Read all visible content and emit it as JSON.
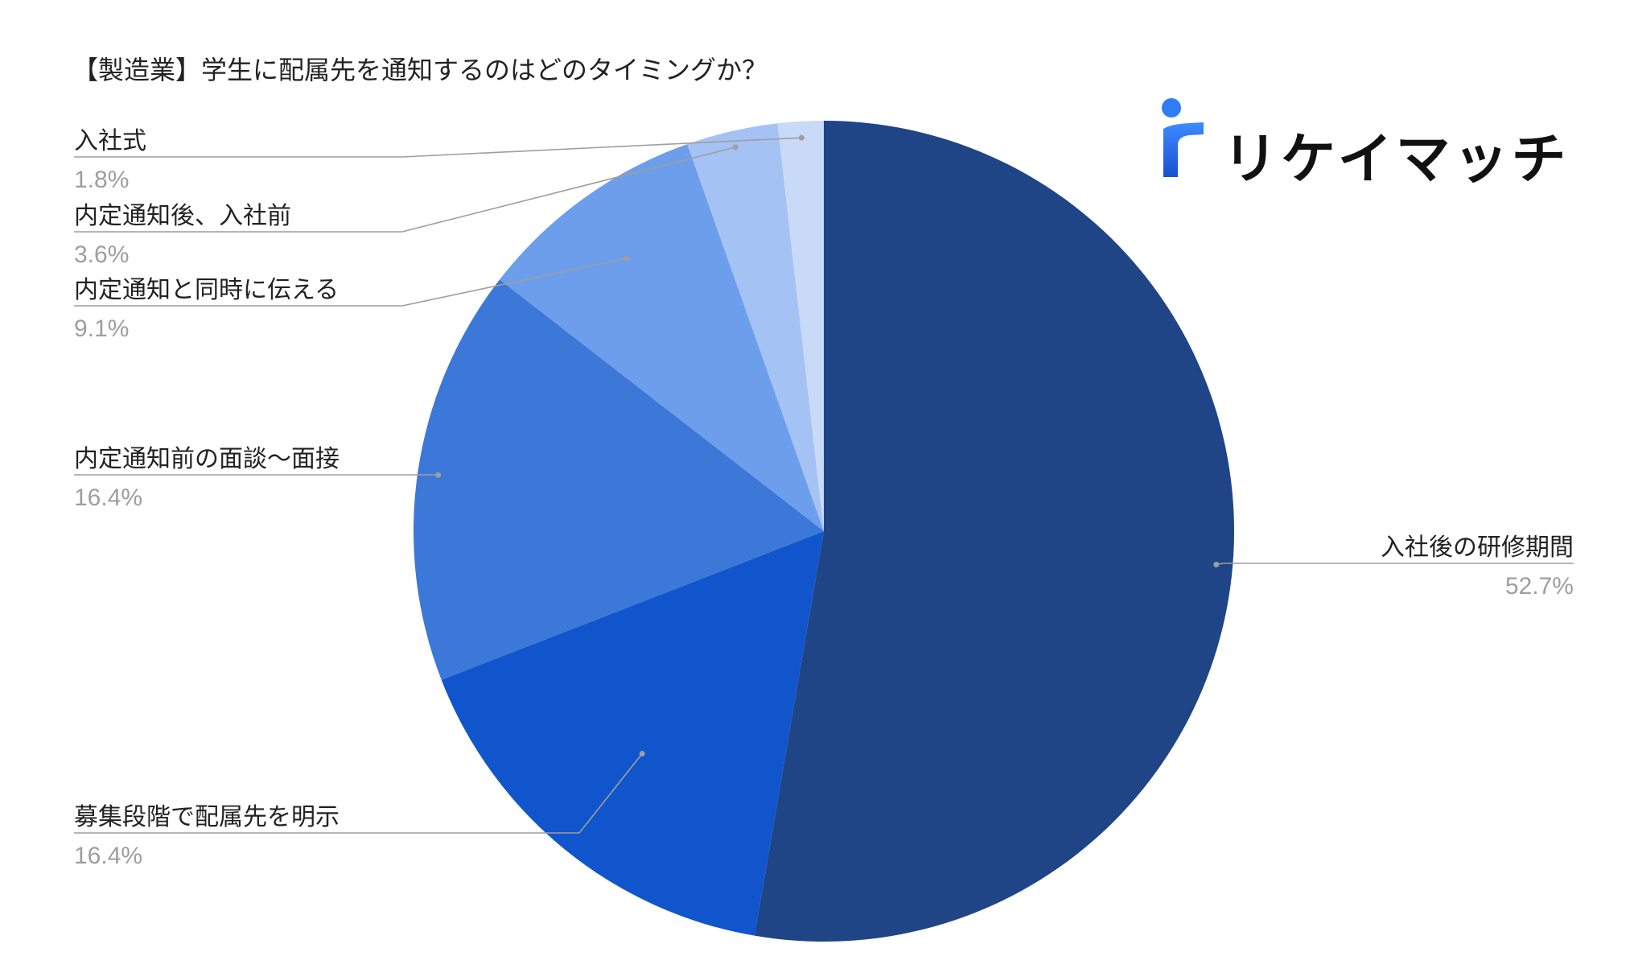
{
  "chart_data": {
    "type": "pie",
    "title": "【製造業】学生に配属先を通知するのはどのタイミングか？",
    "slices": [
      {
        "label": "入社後の研修期間",
        "value": 52.7,
        "value_label": "52.7%",
        "color": "#1f4587"
      },
      {
        "label": "募集段階で配属先を明示",
        "value": 16.4,
        "value_label": "16.4%",
        "color": "#1155cc"
      },
      {
        "label": "内定通知前の面談〜面接",
        "value": 16.4,
        "value_label": "16.4%",
        "color": "#3c78d8"
      },
      {
        "label": "内定通知と同時に伝える",
        "value": 9.1,
        "value_label": "9.1%",
        "color": "#6d9eeb"
      },
      {
        "label": "内定通知後、入社前",
        "value": 3.6,
        "value_label": "3.6%",
        "color": "#a4c2f4"
      },
      {
        "label": "入社式",
        "value": 1.8,
        "value_label": "1.8%",
        "color": "#c9daf8"
      }
    ],
    "legend": "none",
    "start_angle": "12 o'clock",
    "direction": "clockwise"
  },
  "logo": {
    "text": "リケイマッチ",
    "color": "#1a73e8"
  }
}
